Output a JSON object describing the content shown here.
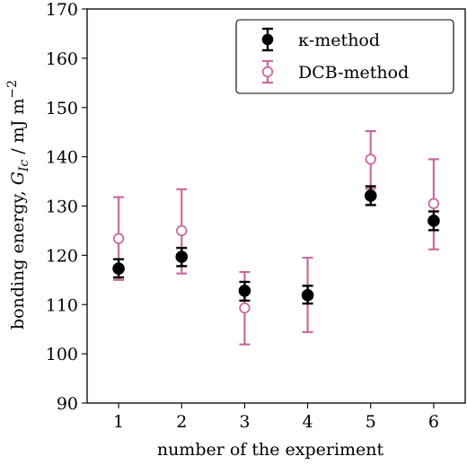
{
  "chart_data": {
    "type": "scatter",
    "xlabel": "number of the experiment",
    "ylabel": "bonding energy, G_Ic / mJ m⁻²",
    "xlim": [
      0.5,
      6.5
    ],
    "ylim": [
      90,
      170
    ],
    "xticks": [
      1,
      2,
      3,
      4,
      5,
      6
    ],
    "yticks": [
      90,
      100,
      110,
      120,
      130,
      140,
      150,
      160,
      170
    ],
    "grid": false,
    "legend_position": "top-right",
    "series": [
      {
        "name": "κ-method",
        "color": "#000000",
        "marker": "filled-circle",
        "points": [
          {
            "x": 1,
            "y": 117.3,
            "err_low": 115.5,
            "err_high": 119.2
          },
          {
            "x": 2,
            "y": 119.7,
            "err_low": 117.8,
            "err_high": 121.5
          },
          {
            "x": 3,
            "y": 112.8,
            "err_low": 110.8,
            "err_high": 114.6
          },
          {
            "x": 4,
            "y": 111.9,
            "err_low": 110.2,
            "err_high": 113.8
          },
          {
            "x": 5,
            "y": 132.1,
            "err_low": 130.2,
            "err_high": 134.0
          },
          {
            "x": 6,
            "y": 127.0,
            "err_low": 125.1,
            "err_high": 128.9
          }
        ]
      },
      {
        "name": "DCB-method",
        "color": "#c86ba0",
        "marker": "open-circle",
        "points": [
          {
            "x": 1,
            "y": 123.4,
            "err_low": 115.0,
            "err_high": 131.8
          },
          {
            "x": 2,
            "y": 125.0,
            "err_low": 116.3,
            "err_high": 133.4
          },
          {
            "x": 3,
            "y": 109.3,
            "err_low": 101.9,
            "err_high": 116.6
          },
          {
            "x": 4,
            "y": 112.0,
            "err_low": 104.4,
            "err_high": 119.5
          },
          {
            "x": 5,
            "y": 139.5,
            "err_low": 133.5,
            "err_high": 145.2
          },
          {
            "x": 6,
            "y": 130.5,
            "err_low": 121.2,
            "err_high": 139.5
          }
        ]
      }
    ]
  }
}
